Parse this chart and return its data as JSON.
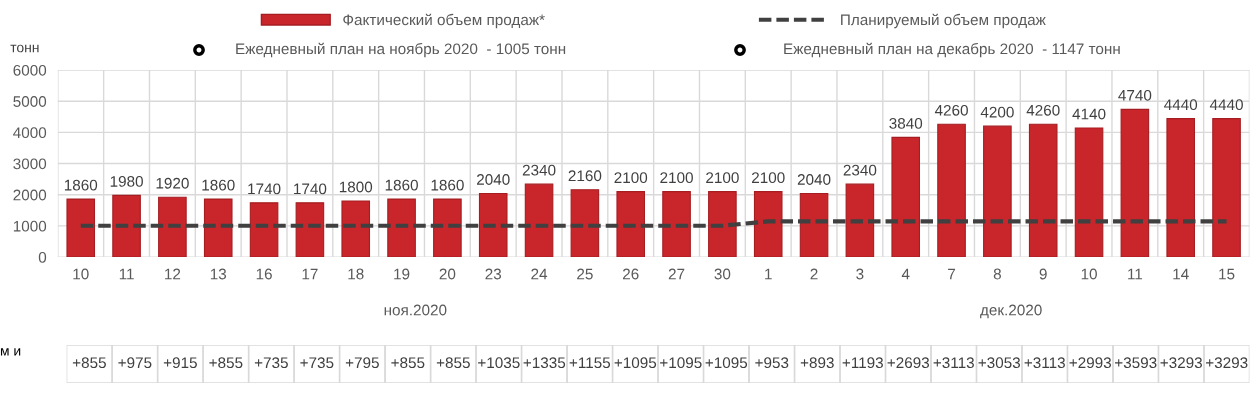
{
  "chart_data": {
    "type": "bar",
    "ylabel": "тонн",
    "categories": [
      "10",
      "11",
      "12",
      "13",
      "16",
      "17",
      "18",
      "19",
      "20",
      "23",
      "24",
      "25",
      "26",
      "27",
      "30",
      "1",
      "2",
      "3",
      "4",
      "7",
      "8",
      "9",
      "10",
      "11",
      "14",
      "15"
    ],
    "series": [
      {
        "name": "Фактический объем продаж*",
        "color": "#c9262b",
        "values": [
          1860,
          1980,
          1920,
          1860,
          1740,
          1740,
          1800,
          1860,
          1860,
          2040,
          2340,
          2160,
          2100,
          2100,
          2100,
          2100,
          2040,
          2340,
          3840,
          4260,
          4200,
          4260,
          4140,
          4740,
          4440,
          4440
        ],
        "value_labels": [
          "1860",
          "1980",
          "1920",
          "1860",
          "1740",
          "1740",
          "1800",
          "1860",
          "1860",
          "2040",
          "2340",
          "2160",
          "2100",
          "2100",
          "2100",
          "2100",
          "2040",
          "2340",
          "3840",
          "4260",
          "4200",
          "4260",
          "4140",
          "4740",
          "4440",
          "4440"
        ]
      },
      {
        "name": "Планируемый объем продаж",
        "type": "line",
        "color": "#404040",
        "line_style": "dashed",
        "marker": "none",
        "values": [
          1005,
          1005,
          1005,
          1005,
          1005,
          1005,
          1005,
          1005,
          1005,
          1005,
          1005,
          1005,
          1005,
          1005,
          1005,
          1147,
          1147,
          1147,
          1147,
          1147,
          1147,
          1147,
          1147,
          1147,
          1147,
          1147
        ]
      }
    ],
    "ylim": [
      0,
      6000
    ],
    "yticks": [
      0,
      1000,
      2000,
      3000,
      4000,
      5000,
      6000
    ],
    "grid": true,
    "legend": "top",
    "annotations": [
      "Ежедневный план на ноябрь 2020  - 1005 тонн",
      "Ежедневный план на декабрь 2020  - 1147 тонн",
      "ноя.2020",
      "дек.2020",
      "м и",
      "+855",
      "+975",
      "+915",
      "+855",
      "+735",
      "+735",
      "+795",
      "+855",
      "+855",
      "+1035",
      "+1335",
      "+1155",
      "+1095",
      "+1095",
      "+1095",
      "+953",
      "+893",
      "+1193",
      "+2693",
      "+3113",
      "+3053",
      "+3113",
      "+2993",
      "+3593",
      "+3293",
      "+3293"
    ]
  }
}
